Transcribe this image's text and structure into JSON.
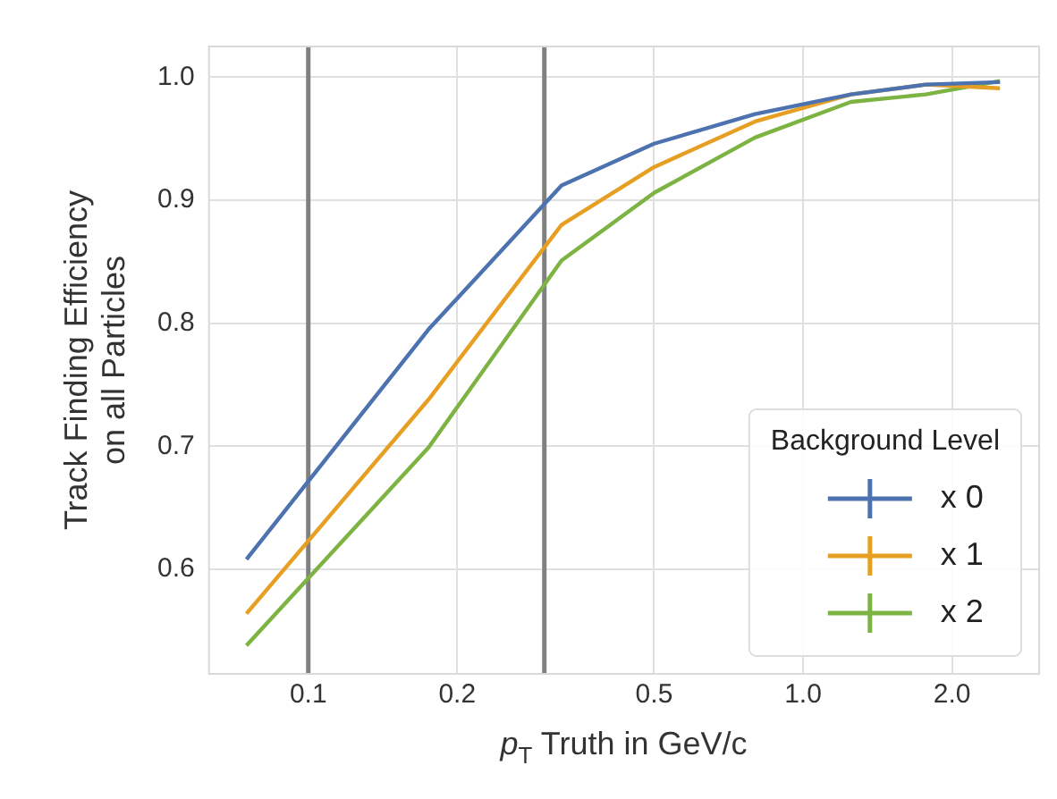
{
  "chart_data": {
    "type": "line",
    "xlabel": "p$_{T}$ Truth in GeV/c",
    "ylabel": "Track Finding Efficiency\non all Particles",
    "legend_title": "Background Level",
    "legend": "bottom right",
    "grid": true,
    "log": "x",
    "marker": "none",
    "line_style": "solid",
    "x": [
      0.075,
      0.175,
      0.325,
      0.5,
      0.8,
      1.25,
      1.77,
      2.5
    ],
    "series": [
      {
        "name": "x 0",
        "color": "#4c72b0",
        "values": [
          0.608,
          0.795,
          0.912,
          0.946,
          0.97,
          0.986,
          0.994,
          0.996
        ]
      },
      {
        "name": "x 1",
        "color": "#e69f22",
        "values": [
          0.564,
          0.738,
          0.88,
          0.927,
          0.964,
          0.986,
          0.994,
          0.991
        ]
      },
      {
        "name": "x 2",
        "color": "#7cb342",
        "values": [
          0.538,
          0.699,
          0.851,
          0.906,
          0.951,
          0.98,
          0.986,
          0.997
        ]
      }
    ],
    "xlim": [
      0.063,
      3.0
    ],
    "ylim": [
      0.515,
      1.025
    ],
    "xticks": [
      {
        "value": 0.1,
        "label": "0.1"
      },
      {
        "value": 0.2,
        "label": "0.2"
      },
      {
        "value": 0.5,
        "label": "0.5"
      },
      {
        "value": 1,
        "label": "1.0"
      },
      {
        "value": 2,
        "label": "2.0"
      }
    ],
    "yticks": [
      {
        "value": 0.6,
        "label": "0.6"
      },
      {
        "value": 0.7,
        "label": "0.7"
      },
      {
        "value": 0.8,
        "label": "0.8"
      },
      {
        "value": 0.9,
        "label": "0.9"
      },
      {
        "value": 1,
        "label": "1.0"
      }
    ],
    "ref_lines": [
      {
        "axis": "x",
        "value": 0.1,
        "color": "#808080"
      },
      {
        "axis": "x",
        "value": 0.3,
        "color": "#808080"
      }
    ]
  }
}
